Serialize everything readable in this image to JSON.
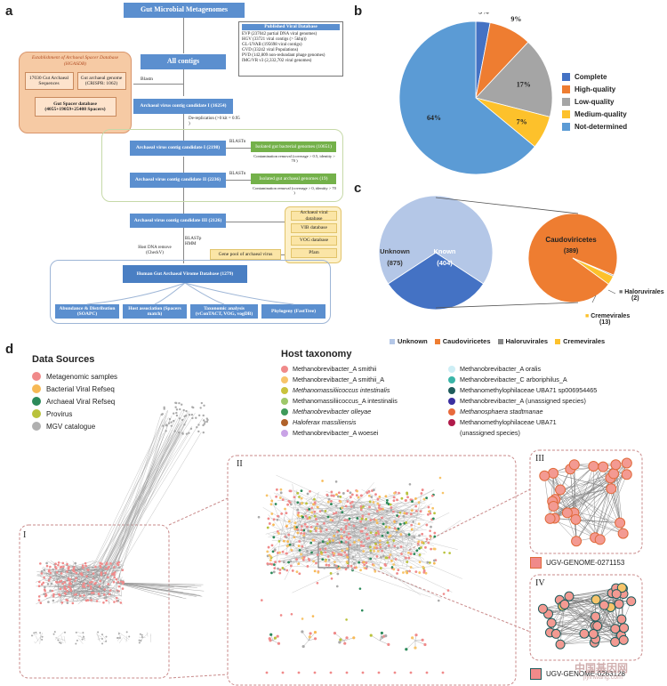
{
  "panels": {
    "a": "a",
    "b": "b",
    "c": "c",
    "d": "d"
  },
  "flowchart": {
    "top": "Gut Microbial Metagenomes",
    "all_contigs": "All contigs",
    "blastn": "Blastn",
    "spacer_db": {
      "title": "Establishment of Archaeal Spacer Database (HGASDB)",
      "left": "17030 Gut Archaeal Sequences",
      "right": "Gut archaeal genome (CRISPR: 1062)",
      "bottom": "Gut Spacer database (4055+19059+25408 Spacers)"
    },
    "published": {
      "title": "Published Viral Database",
      "lines": [
        "EVP (237042 partial DNA viral genomes)",
        "HGV (33721 viral contigs (> 5kbp))",
        "GL-UVAB (195698 viral contigs)",
        "GVD (33242 viral Populations)",
        "PVD (142,809 non-redundant phage genomes)",
        "IMG/VR v3 (2,332,702 viral genomes)"
      ]
    },
    "cand1": "Archaeal virus contig candidate I (16254)",
    "dereplication": "De-replication (>0 kit = 0.95 )",
    "cand_i2": "Archaeal virus contig candidate I (2198)",
    "cand2": "Archaeal virus contig candidate II (2236)",
    "blastn_a": "BLASTn",
    "blastn_b": "BLASTn",
    "isolated_bact": "Isolated gut bacterial genomes (10651)",
    "isolated_bact_note": "Contamination removal (coverage > 0.5, identity > 70 )",
    "isolated_arch": "Isolated gut archaeal genomes (19)",
    "isolated_arch_note": "Contamination removal (coverage > 0, identity > 70 )",
    "cand3": "Archaeal virus contig candidate III (2126)",
    "blastp": "BLASTp HMM",
    "checkv": "Host DNA remove (CheckV)",
    "gene_pool": "Gene pool of archaeal virus",
    "viral_dbs": [
      "Archaeal viral database",
      "VIB database",
      "VOG database",
      "Pfam"
    ],
    "hgavd": "Human Gut Archaeal Virome Database (1279)",
    "analyses": [
      "Abundance & Distribution (SOAPC)",
      "Host association (Spacers match)",
      "Taxonomic analysis (vConTACT, VOG, vogDB)",
      "Phylogeny (FastTree)"
    ]
  },
  "pie_b": {
    "labels_on_chart": [
      "3%",
      "9%",
      "17%",
      "7%",
      "64%"
    ],
    "legend": [
      "Complete",
      "High-quality",
      "Low-quality",
      "Medium-quality",
      "Not-determined"
    ]
  },
  "panel_c": {
    "unknown_label": "Unknown",
    "unknown_count": "(875)",
    "known_label": "Known",
    "known_count": "(404)",
    "caudo_label": "Caudoviricetes",
    "caudo_count": "(389)",
    "halo_label": "Haloruvirales",
    "halo_count": "(2)",
    "creme_label": "Cremevirales",
    "creme_count": "(13)",
    "legend": [
      "Unknown",
      "Caudoviricetes",
      "Haloruvirales",
      "Cremevirales"
    ]
  },
  "chart_data": [
    {
      "type": "pie",
      "categories": [
        "Complete",
        "High-quality",
        "Low-quality",
        "Medium-quality",
        "Not-determined"
      ],
      "values": [
        3,
        9,
        17,
        7,
        64
      ],
      "legend_position": "right"
    },
    {
      "type": "pie",
      "categories": [
        "Unknown",
        "Known"
      ],
      "values": [
        875,
        404
      ],
      "legend_position": "bottom"
    },
    {
      "type": "pie",
      "categories": [
        "Caudoviricetes",
        "Haloruvirales",
        "Cremevirales"
      ],
      "values": [
        389,
        2,
        13
      ],
      "legend_position": "bottom"
    }
  ],
  "network": {
    "data_sources_title": "Data Sources",
    "data_sources": [
      {
        "label": "Metagenomic samples",
        "color": "#f08a8a"
      },
      {
        "label": "Bacterial Viral Refseq",
        "color": "#f7b955"
      },
      {
        "label": "Archaeal Viral Refseq",
        "color": "#2c8a5a"
      },
      {
        "label": "Provirus",
        "color": "#b9c23b"
      },
      {
        "label": "MGV catalogue",
        "color": "#b0b0b0"
      }
    ],
    "host_title": "Host taxonomy",
    "host_left": [
      {
        "label": "Methanobrevibacter_A smithii",
        "color": "#f08a8a"
      },
      {
        "label": "Methanobrevibacter_A smithii_A",
        "color": "#f7c46a"
      },
      {
        "label": "Methanomassiliicoccus intestinalis",
        "color": "#c9c23b"
      },
      {
        "label": "Methanomassiliicoccus_A intestinalis",
        "color": "#9ec86a"
      },
      {
        "label": "Methanobrevibacter olleyae",
        "color": "#3e9a5a"
      },
      {
        "label": "Haloferax massiliensis",
        "color": "#b0622a"
      },
      {
        "label": "Methanobrevibacter_A woesei",
        "color": "#c9a3e6"
      }
    ],
    "host_right": [
      {
        "label": "Methanobrevibacter_A oralis",
        "color": "#cdeef5"
      },
      {
        "label": "Methanobrevibacter_C arboriphilus_A",
        "color": "#3ab5a8"
      },
      {
        "label": "Methanomethylophilaceae UBA71 sp006954465",
        "color": "#1f5c5c"
      },
      {
        "label": "Methanobrevibacter_A (unassigned species)",
        "color": "#3a2fa0"
      },
      {
        "label": "Methanosphaera stadtmanae",
        "color": "#e86a3c"
      },
      {
        "label": "Methanomethylophilaceae UBA71",
        "color": "#b01a4a"
      },
      {
        "label": "(unassigned species)",
        "color": ""
      }
    ],
    "cluster_labels": [
      "I",
      "II",
      "III",
      "IV"
    ],
    "genome_iii": "UGV-GENOME-0271153",
    "genome_iv": "UGV-GENOME-0263128"
  },
  "watermark": {
    "cn": "中国基因网",
    "url": "jiyinwang.com"
  },
  "colors": {
    "blue": "#5b8fcf",
    "orange": "#ee7d31",
    "gray": "#a5a5a5",
    "yellow": "#fdc12b",
    "lightblue": "#9dc3e6",
    "darkblue": "#4472c4",
    "c_unknown": "#b4c7e7",
    "c_known": "#4472c4"
  }
}
